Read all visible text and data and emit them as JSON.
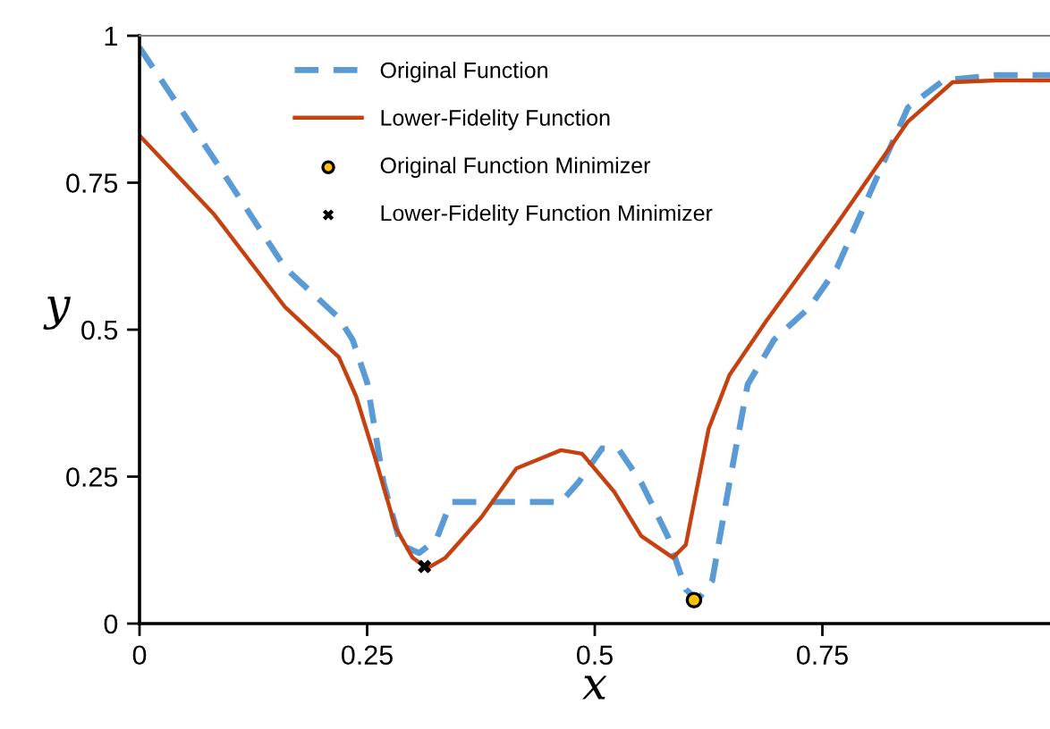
{
  "chart_data": {
    "type": "line",
    "xlabel": "x",
    "ylabel": "y",
    "xlim": [
      0,
      1
    ],
    "ylim": [
      0,
      1
    ],
    "xticks": [
      0,
      0.25,
      0.5,
      0.75
    ],
    "yticks": [
      0,
      0.25,
      0.5,
      0.75,
      1
    ],
    "grid": false,
    "legend": "top",
    "marker": "none",
    "series": [
      {
        "name": "Original Function",
        "color": "#5b9bd5",
        "line_style": "dashed",
        "x": [
          0,
          0.082,
          0.16,
          0.219,
          0.234,
          0.25,
          0.268,
          0.287,
          0.307,
          0.326,
          0.342,
          0.385,
          0.463,
          0.482,
          0.508,
          0.527,
          0.551,
          0.58,
          0.6,
          0.613,
          0.629,
          0.648,
          0.668,
          0.697,
          0.736,
          0.766,
          0.805,
          0.844,
          0.883,
          0.941,
          1
        ],
        "values": [
          0.98,
          0.79,
          0.605,
          0.52,
          0.483,
          0.41,
          0.24,
          0.134,
          0.12,
          0.143,
          0.207,
          0.207,
          0.207,
          0.24,
          0.298,
          0.295,
          0.24,
          0.149,
          0.058,
          0.04,
          0.073,
          0.24,
          0.407,
          0.483,
          0.538,
          0.605,
          0.742,
          0.878,
          0.924,
          0.933,
          0.933
        ]
      },
      {
        "name": "Lower-Fidelity Function",
        "color": "#c5410f",
        "line_style": "solid",
        "x": [
          0,
          0.082,
          0.16,
          0.219,
          0.238,
          0.258,
          0.281,
          0.3,
          0.316,
          0.336,
          0.375,
          0.414,
          0.463,
          0.486,
          0.521,
          0.551,
          0.586,
          0.6,
          0.625,
          0.648,
          0.688,
          0.766,
          0.844,
          0.893,
          0.941,
          1
        ],
        "values": [
          0.83,
          0.696,
          0.538,
          0.453,
          0.386,
          0.286,
          0.164,
          0.112,
          0.094,
          0.112,
          0.18,
          0.264,
          0.295,
          0.289,
          0.225,
          0.149,
          0.112,
          0.134,
          0.331,
          0.423,
          0.514,
          0.68,
          0.854,
          0.921,
          0.924,
          0.924
        ]
      },
      {
        "name": "Original Function Minimizer",
        "type": "scatter",
        "color": "#ffc000",
        "marker": "circle",
        "x": [
          0.609
        ],
        "values": [
          0.04
        ]
      },
      {
        "name": "Lower-Fidelity Function Minimizer",
        "type": "scatter",
        "color": "#000000",
        "marker": "cross",
        "x": [
          0.313
        ],
        "values": [
          0.097
        ]
      }
    ]
  }
}
